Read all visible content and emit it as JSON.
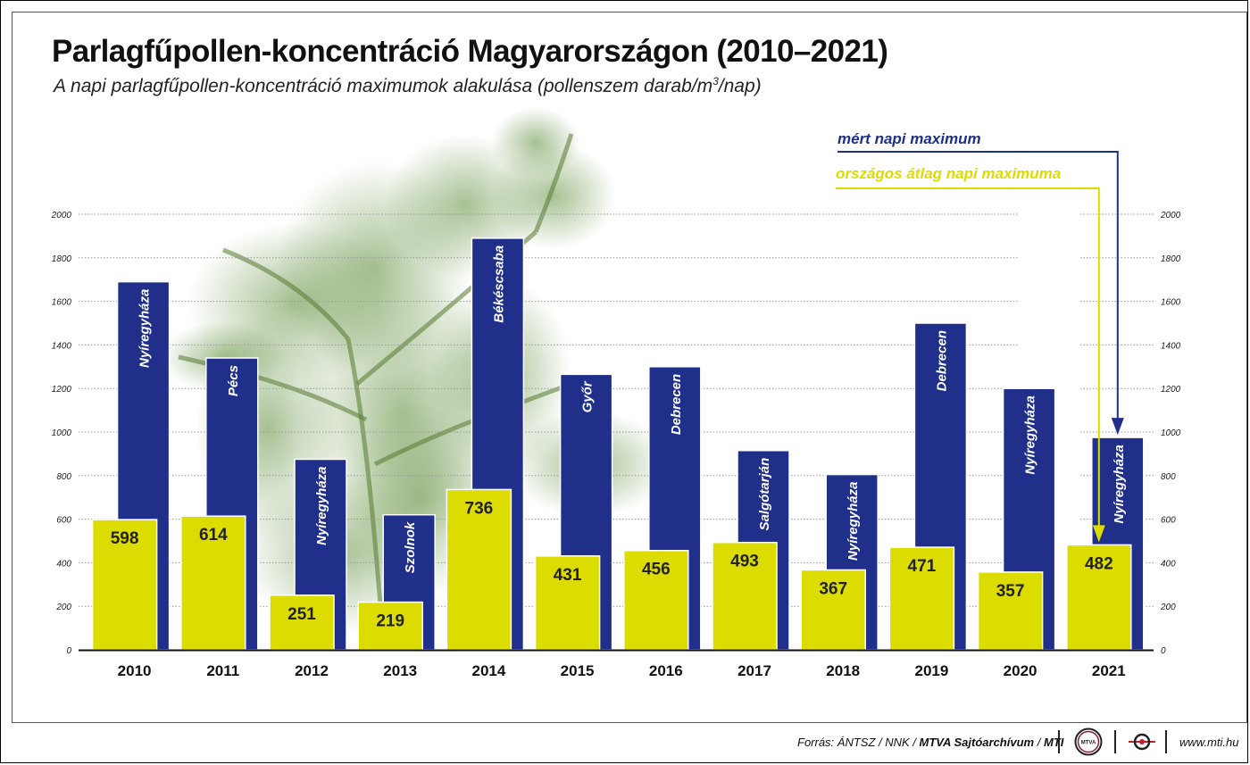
{
  "chart_data": {
    "type": "bar",
    "title": "Parlagfűpollen-koncentráció Magyarországon (2010–2021)",
    "subtitle_main": "A napi parlagfűpollen-koncentráció maximumok alakulása (pollenszem darab/m",
    "subtitle_sup": "3",
    "subtitle_end": "/nap)",
    "categories": [
      "2010",
      "2011",
      "2012",
      "2013",
      "2014",
      "2015",
      "2016",
      "2017",
      "2018",
      "2019",
      "2020",
      "2021"
    ],
    "series": [
      {
        "name": "mért napi maximum",
        "color": "#1f2f8a",
        "values": [
          1690,
          1340,
          875,
          620,
          1890,
          1265,
          1300,
          915,
          805,
          1500,
          1200,
          975
        ],
        "locations": [
          "Nyíregyháza",
          "Pécs",
          "Nyíregyháza",
          "Szolnok",
          "Békéscsaba",
          "Győr",
          "Debrecen",
          "Salgótarján",
          "Nyíregyháza",
          "Debrecen",
          "Nyíregyháza",
          "Nyíregyháza"
        ]
      },
      {
        "name": "országos átlag napi maximuma",
        "color": "#dcdc00",
        "values": [
          598,
          614,
          251,
          219,
          736,
          431,
          456,
          493,
          367,
          471,
          357,
          482
        ]
      }
    ],
    "ylim": [
      0,
      2000
    ],
    "yticks": [
      "0",
      "200",
      "400",
      "600",
      "800",
      "1000",
      "1200",
      "1400",
      "1600",
      "1800",
      "2000"
    ],
    "grid": true,
    "legend_position": "top-right"
  },
  "footer": {
    "source_prefix": "Forrás: ÁNTSZ / NNK / ",
    "source_bold": "MTVA Sajtóarchívum",
    "source_sep": " / ",
    "source_bold2": "MTI",
    "url": "www.mti.hu",
    "logo1_text": "MTVA"
  }
}
